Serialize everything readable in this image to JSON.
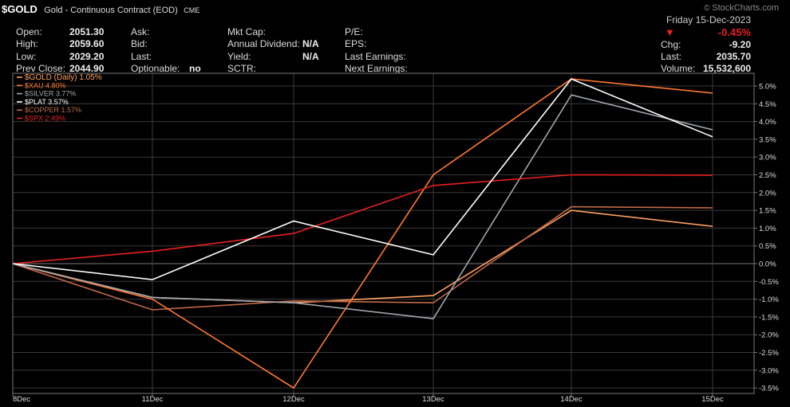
{
  "header": {
    "symbol": "$GOLD",
    "description": "Gold - Continuous Contract (EOD)",
    "exchange": "CME",
    "watermark": "StockCharts.com",
    "date": "Friday 15-Dec-2023",
    "change_pct": "-0.45%",
    "stats_col1": [
      {
        "label": "Open:",
        "value": "2051.30"
      },
      {
        "label": "High:",
        "value": "2059.60"
      },
      {
        "label": "Low:",
        "value": "2029.20"
      },
      {
        "label": "Prev Close:",
        "value": "2044.90"
      }
    ],
    "stats_col2": [
      {
        "label": "Ask:",
        "value": ""
      },
      {
        "label": "Bid:",
        "value": ""
      },
      {
        "label": "Last:",
        "value": ""
      },
      {
        "label": "Optionable:",
        "value": "no"
      }
    ],
    "stats_col3": [
      {
        "label": "Mkt Cap:",
        "value": ""
      },
      {
        "label": "Annual Dividend:",
        "value": "N/A"
      },
      {
        "label": "Yield:",
        "value": "N/A"
      },
      {
        "label": "SCTR:",
        "value": ""
      }
    ],
    "stats_col4": [
      {
        "label": "P/E:"
      },
      {
        "label": "EPS:"
      },
      {
        "label": "Last Earnings:"
      },
      {
        "label": "Next Earnings:"
      }
    ],
    "right_stats": [
      {
        "label": "Chg:",
        "value": "-9.20"
      },
      {
        "label": "Last:",
        "value": "2035.70"
      },
      {
        "label": "Volume:",
        "value": "15,532,600"
      }
    ]
  },
  "chart_data": {
    "type": "line",
    "x": [
      "8Dec",
      "11Dec",
      "12Dec",
      "13Dec",
      "14Dec",
      "15Dec"
    ],
    "yticks": [
      5.0,
      4.5,
      4.0,
      3.5,
      3.0,
      2.5,
      2.0,
      1.5,
      1.0,
      0.5,
      0.0,
      -0.5,
      -1.0,
      -1.5,
      -2.0,
      -2.5,
      -3.0,
      -3.5
    ],
    "ytick_labels": [
      "5.0%",
      "4.5%",
      "4.0%",
      "3.5%",
      "3.0%",
      "2.5%",
      "2.0%",
      "1.5%",
      "1.0%",
      "0.5%",
      "0.0%",
      "-0.5%",
      "-1.0%",
      "-1.5%",
      "-2.0%",
      "-2.5%",
      "-3.0%",
      "-3.5%"
    ],
    "ylim": [
      -3.6,
      5.3
    ],
    "grid": true,
    "legend_position": "top-left",
    "series": [
      {
        "name": "$GOLD (Daily) 1.05%",
        "color": "#ffa060",
        "values": [
          0,
          -0.95,
          -1.1,
          -0.9,
          1.5,
          1.05
        ]
      },
      {
        "name": "$XAU 4.80%",
        "color": "#ff7733",
        "values": [
          0,
          -1.0,
          -3.5,
          2.5,
          5.2,
          4.8
        ]
      },
      {
        "name": "$SILVER 3.77%",
        "color": "#a0a8b0",
        "values": [
          0,
          -0.95,
          -1.1,
          -1.55,
          4.75,
          3.77
        ]
      },
      {
        "name": "$PLAT 3.57%",
        "color": "#ffffff",
        "values": [
          0,
          -0.45,
          1.2,
          0.25,
          5.2,
          3.57
        ]
      },
      {
        "name": "$COPPER 1.57%",
        "color": "#c06a4a",
        "values": [
          0,
          -1.3,
          -1.05,
          -1.1,
          1.6,
          1.57
        ]
      },
      {
        "name": "$SPX 2.49%",
        "color": "#e82020",
        "values": [
          0,
          0.35,
          0.85,
          2.2,
          2.5,
          2.49
        ]
      }
    ]
  }
}
